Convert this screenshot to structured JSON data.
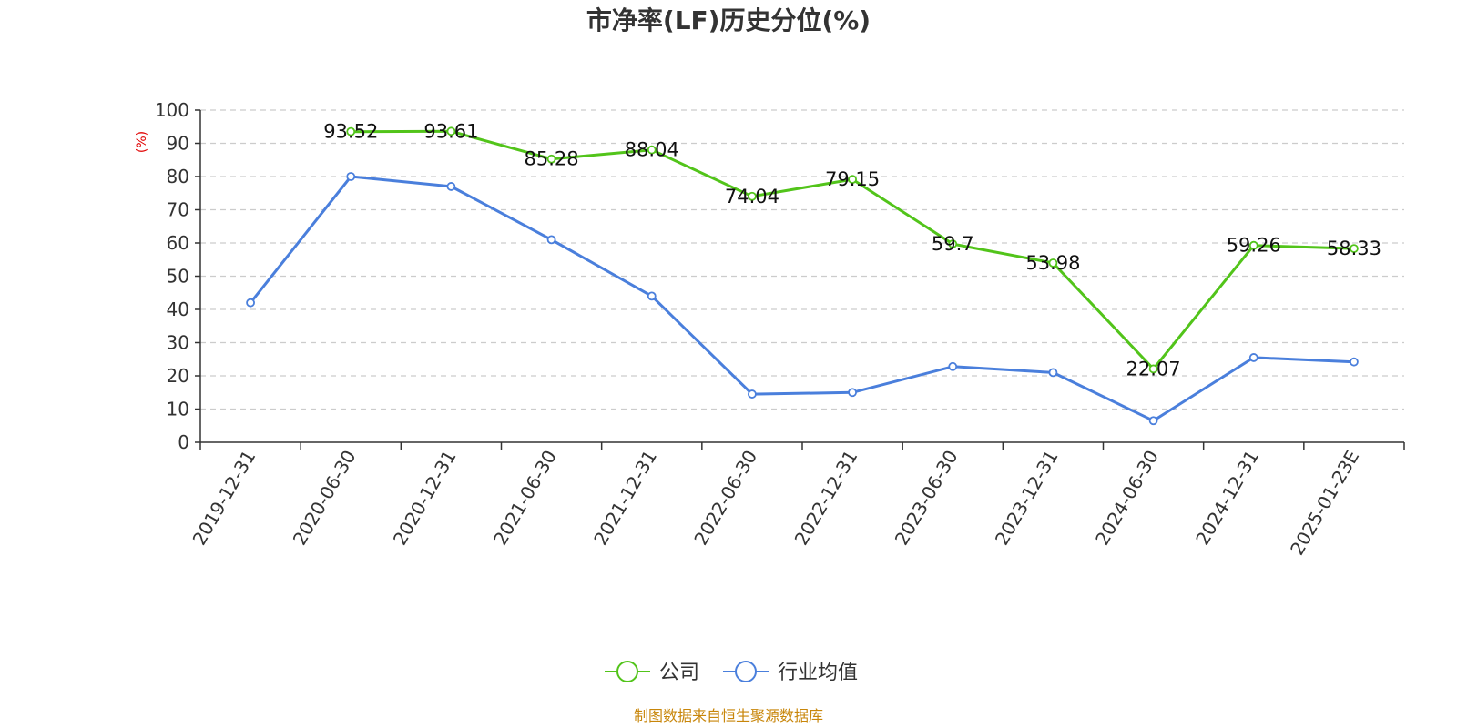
{
  "chart_data": {
    "type": "line",
    "title": "市净率(LF)历史分位(%)",
    "ylabel": "(%)",
    "ylim": [
      0,
      100
    ],
    "yticks": [
      0,
      10,
      20,
      30,
      40,
      50,
      60,
      70,
      80,
      90,
      100
    ],
    "grid": true,
    "legend_position": "bottom",
    "categories": [
      "2019-12-31",
      "2020-06-30",
      "2020-12-31",
      "2021-06-30",
      "2021-12-31",
      "2022-06-30",
      "2022-12-31",
      "2023-06-30",
      "2023-12-31",
      "2024-06-30",
      "2024-12-31",
      "2025-01-23E"
    ],
    "series": [
      {
        "name": "公司",
        "color": "#52c41a",
        "values": [
          null,
          93.52,
          93.61,
          85.28,
          88.04,
          74.04,
          79.15,
          59.7,
          53.98,
          22.07,
          59.26,
          58.33
        ],
        "labels": [
          "",
          "93.52",
          "93.61",
          "85.28",
          "88.04",
          "74.04",
          "79.15",
          "59.7",
          "53.98",
          "22.07",
          "59.26",
          "58.33"
        ],
        "show_labels": true
      },
      {
        "name": "行业均值",
        "color": "#4a7fdc",
        "values": [
          42,
          80,
          77,
          61,
          44,
          14.5,
          15,
          22.8,
          21,
          6.5,
          25.5,
          24.2
        ],
        "show_labels": false
      }
    ],
    "source": "制图数据来自恒生聚源数据库"
  }
}
